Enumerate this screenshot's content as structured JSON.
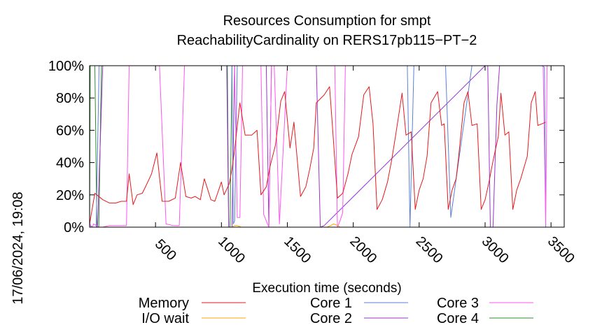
{
  "chart_data": {
    "type": "line",
    "title": [
      "Resources Consumption for smpt",
      "ReachabilityCardinality on RERS17pb115−PT−2"
    ],
    "xlabel": "Execution time (seconds)",
    "ylabel": "",
    "side_label": "17/06/2024, 19:08",
    "xlim": [
      0,
      3600
    ],
    "ylim": [
      0,
      100
    ],
    "x_ticks": [
      500,
      1000,
      1500,
      2000,
      2500,
      3000,
      3500
    ],
    "y_ticks": [
      0,
      20,
      40,
      60,
      80,
      100
    ],
    "y_tick_labels": [
      "0%",
      "20%",
      "40%",
      "60%",
      "80%",
      "100%"
    ],
    "grid": false,
    "legend_position": "bottom",
    "series": [
      {
        "name": "Memory",
        "color": "#e41a1c",
        "x": [
          0,
          40,
          100,
          150,
          200,
          240,
          280,
          300,
          330,
          360,
          400,
          430,
          470,
          510,
          550,
          600,
          650,
          690,
          730,
          770,
          800,
          840,
          870,
          920,
          950,
          1000,
          1020,
          1060,
          1080,
          1100,
          1140,
          1180,
          1230,
          1270,
          1300,
          1340,
          1370,
          1410,
          1450,
          1480,
          1520,
          1550,
          1600,
          1640,
          1670,
          1700,
          1720,
          1780,
          1820,
          1840,
          1880,
          1920,
          1960,
          1990,
          2040,
          2080,
          2120,
          2150,
          2180,
          2220,
          2260,
          2290,
          2320,
          2370,
          2400,
          2440,
          2470,
          2500,
          2530,
          2560,
          2590,
          2640,
          2670,
          2690,
          2720,
          2750,
          2780,
          2800,
          2840,
          2870,
          2900,
          2940,
          2970,
          3000,
          3030,
          3060,
          3100,
          3120,
          3150,
          3180,
          3210,
          3240,
          3270,
          3320,
          3350,
          3380,
          3400,
          3430,
          3460
        ],
        "y": [
          2,
          21,
          17,
          15,
          15,
          16,
          16,
          33,
          14,
          20,
          21,
          26,
          33,
          46,
          16,
          16,
          18,
          40,
          19,
          18,
          19,
          17,
          30,
          17,
          16,
          28,
          20,
          27,
          36,
          48,
          77,
          57,
          57,
          60,
          20,
          25,
          38,
          51,
          78,
          84,
          49,
          65,
          19,
          25,
          36,
          49,
          77,
          82,
          87,
          65,
          18,
          21,
          33,
          45,
          56,
          82,
          87,
          64,
          11,
          17,
          28,
          41,
          56,
          83,
          57,
          59,
          11,
          23,
          30,
          44,
          77,
          84,
          63,
          64,
          11,
          23,
          30,
          44,
          77,
          84,
          63,
          64,
          11,
          17,
          28,
          41,
          56,
          83,
          57,
          59,
          11,
          23,
          30,
          44,
          77,
          84,
          63,
          64,
          65
        ]
      },
      {
        "name": "I/O wait",
        "color": "#ffa500",
        "x": [
          0,
          200,
          400,
          1080,
          1100,
          1120,
          1150,
          1200,
          1800,
          1830,
          1850,
          1880,
          1900,
          2400,
          3000,
          3600
        ],
        "y": [
          0,
          0,
          0,
          0,
          1,
          1,
          0,
          0,
          0,
          1,
          2,
          1,
          0,
          0,
          0,
          0
        ]
      },
      {
        "name": "Core 1",
        "color": "#5b7fd6",
        "x": [
          0,
          18,
          30,
          50,
          72,
          88,
          180,
          1080,
          1090,
          1100,
          1120,
          1350,
          1370,
          2390,
          2410,
          2430,
          2460,
          2630,
          2660,
          2680,
          2700,
          2740,
          2900,
          2910,
          2930,
          2950,
          3050,
          3070,
          3400,
          3430,
          3450,
          3460
        ],
        "y": [
          2,
          0,
          0,
          0,
          100,
          100,
          100,
          100,
          2,
          4,
          100,
          100,
          100,
          100,
          100,
          0,
          100,
          100,
          100,
          100,
          100,
          6,
          100,
          100,
          100,
          100,
          100,
          100,
          100,
          100,
          99,
          0
        ]
      },
      {
        "name": "Core 2",
        "color": "#9933cc",
        "x": [
          0,
          60,
          100,
          280,
          1040,
          1055,
          1080,
          1100,
          1320,
          1340,
          1360,
          1380,
          1490,
          1500,
          1700,
          1720,
          1750,
          1780,
          3000,
          3020,
          3040,
          3060,
          3090,
          3110,
          3400,
          3460
        ],
        "y": [
          0,
          0,
          100,
          100,
          100,
          0,
          0,
          100,
          100,
          100,
          0,
          100,
          100,
          100,
          100,
          100,
          0,
          1,
          100,
          100,
          0,
          0,
          76,
          100,
          100,
          100
        ]
      },
      {
        "name": "Core 3",
        "color": "#ff55ee",
        "x": [
          0,
          10,
          20,
          30,
          50,
          72,
          100,
          150,
          200,
          240,
          280,
          300,
          330,
          500,
          530,
          580,
          630,
          680,
          720,
          760,
          850,
          1100,
          1120,
          1140,
          1160,
          1270,
          1300,
          1320,
          1360,
          1380,
          1400,
          1440,
          1500,
          1840,
          1860,
          1880,
          1900,
          1920,
          1940,
          1960,
          2000,
          3000,
          3020,
          3040,
          3060,
          3080,
          3100,
          3150,
          3400,
          3440,
          3460,
          3470
        ],
        "y": [
          3,
          0,
          0,
          2,
          1,
          0,
          0,
          1,
          1,
          1,
          1,
          100,
          100,
          100,
          100,
          2,
          1,
          1,
          100,
          100,
          100,
          100,
          6,
          6,
          100,
          100,
          100,
          8,
          0,
          100,
          100,
          2,
          100,
          100,
          100,
          0,
          4,
          9,
          100,
          100,
          100,
          100,
          100,
          100,
          100,
          100,
          100,
          100,
          100,
          100,
          1,
          100
        ]
      },
      {
        "name": "Core 4",
        "color": "#2e8b2e",
        "x": [
          0,
          5,
          20,
          40,
          55,
          70,
          90,
          180,
          1040,
          1045,
          1055,
          1065,
          1080,
          1100,
          3600
        ],
        "y": [
          0,
          100,
          100,
          100,
          0,
          0,
          100,
          100,
          100,
          100,
          0,
          0,
          100,
          100,
          100
        ]
      }
    ]
  }
}
